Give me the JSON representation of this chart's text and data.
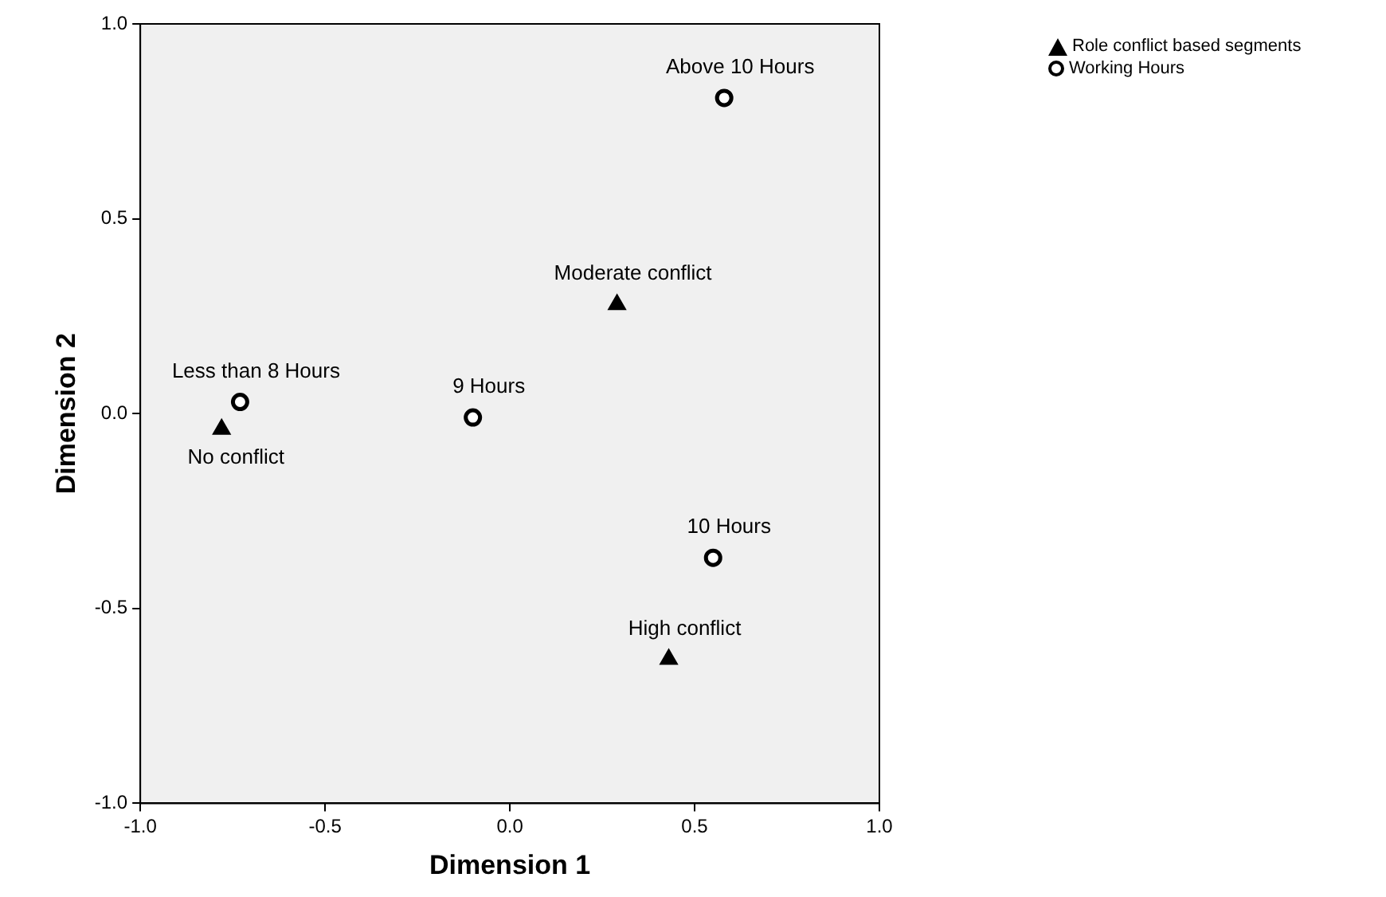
{
  "chart_data": {
    "type": "scatter",
    "xlabel": "Dimension 1",
    "ylabel": "Dimension 2",
    "xlim": [
      -1,
      1
    ],
    "ylim": [
      -1,
      1
    ],
    "xticks": [
      {
        "value": -1,
        "label": "-1.0"
      },
      {
        "value": -0.5,
        "label": "-0.5"
      },
      {
        "value": 0,
        "label": "0.0"
      },
      {
        "value": 0.5,
        "label": "0.5"
      },
      {
        "value": 1,
        "label": "1.0"
      }
    ],
    "yticks": [
      {
        "value": -1,
        "label": "-1.0"
      },
      {
        "value": -0.5,
        "label": "-0.5"
      },
      {
        "value": 0,
        "label": "0.0"
      },
      {
        "value": 0.5,
        "label": "0.5"
      },
      {
        "value": 1,
        "label": "1.0"
      }
    ],
    "grid": false,
    "legend": "top right",
    "series": [
      {
        "name": "Role conflict based segments",
        "color": "#000000",
        "marker": "triangle",
        "x": [
          0.29,
          -0.78,
          0.43
        ],
        "values": [
          0.28,
          -0.04,
          -0.63
        ]
      },
      {
        "name": "Working Hours",
        "color": "#000000",
        "marker": "circle",
        "x": [
          0.58,
          -0.73,
          -0.1,
          0.55
        ],
        "values": [
          0.81,
          0.03,
          -0.01,
          -0.37
        ]
      }
    ],
    "annotations": [
      {
        "text": "Above 10 Hours",
        "x": 0.58,
        "y": 0.81
      },
      {
        "text": "Moderate conflict",
        "x": 0.29,
        "y": 0.28
      },
      {
        "text": "Less than 8 Hours",
        "x": -0.73,
        "y": 0.03
      },
      {
        "text": "9 Hours",
        "x": -0.1,
        "y": -0.01
      },
      {
        "text": "No conflict",
        "x": -0.78,
        "y": -0.04
      },
      {
        "text": "10 Hours",
        "x": 0.55,
        "y": -0.37
      },
      {
        "text": "High conflict",
        "x": 0.43,
        "y": -0.63
      }
    ]
  }
}
